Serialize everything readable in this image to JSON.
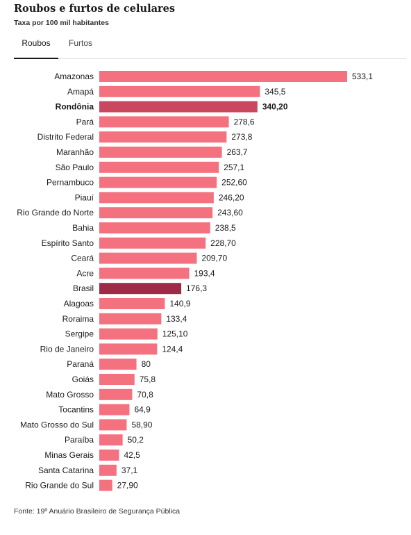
{
  "header": {
    "title": "Roubos e furtos de celulares",
    "subtitle": "Taxa por 100 mil habitantes"
  },
  "tabs": [
    {
      "label": "Roubos",
      "active": true
    },
    {
      "label": "Furtos",
      "active": false
    }
  ],
  "colors": {
    "bar": "#f4717f",
    "highlight": "#c9485f",
    "national": "#9e2a47"
  },
  "chart_data": {
    "type": "bar",
    "orientation": "horizontal",
    "title": "Roubos e furtos de celulares",
    "subtitle": "Taxa por 100 mil habitantes",
    "xlabel": "",
    "ylabel": "",
    "xlim": [
      0,
      533.1
    ],
    "grid": false,
    "categories": [
      "Amazonas",
      "Amapá",
      "Rondônia",
      "Pará",
      "Distrito Federal",
      "Maranhão",
      "São Paulo",
      "Pernambuco",
      "Piauí",
      "Rio Grande do Norte",
      "Bahia",
      "Espírito Santo",
      "Ceará",
      "Acre",
      "Brasil",
      "Alagoas",
      "Roraima",
      "Sergipe",
      "Rio de Janeiro",
      "Paraná",
      "Goiás",
      "Mato Grosso",
      "Tocantins",
      "Mato Grosso do Sul",
      "Paraíba",
      "Minas Gerais",
      "Santa Catarina",
      "Rio Grande do Sul"
    ],
    "values": [
      533.1,
      345.5,
      340.2,
      278.6,
      273.8,
      263.7,
      257.1,
      252.6,
      246.2,
      243.6,
      238.5,
      228.7,
      209.7,
      193.4,
      176.3,
      140.9,
      133.4,
      125.1,
      124.4,
      80,
      75.8,
      70.8,
      64.9,
      58.9,
      50.2,
      42.5,
      37.1,
      27.9
    ],
    "value_labels": [
      "533,1",
      "345,5",
      "340,20",
      "278,6",
      "273,8",
      "263,7",
      "257,1",
      "252,60",
      "246,20",
      "243,60",
      "238,5",
      "228,70",
      "209,70",
      "193,4",
      "176,3",
      "140,9",
      "133,4",
      "125,10",
      "124,4",
      "80",
      "75,8",
      "70,8",
      "64,9",
      "58,90",
      "50,2",
      "42,5",
      "37,1",
      "27,90"
    ],
    "highlight": "Rondônia",
    "national": "Brasil"
  },
  "footer": {
    "source": "Fonte: 19º Anuário Brasileiro de Segurança Pública"
  }
}
